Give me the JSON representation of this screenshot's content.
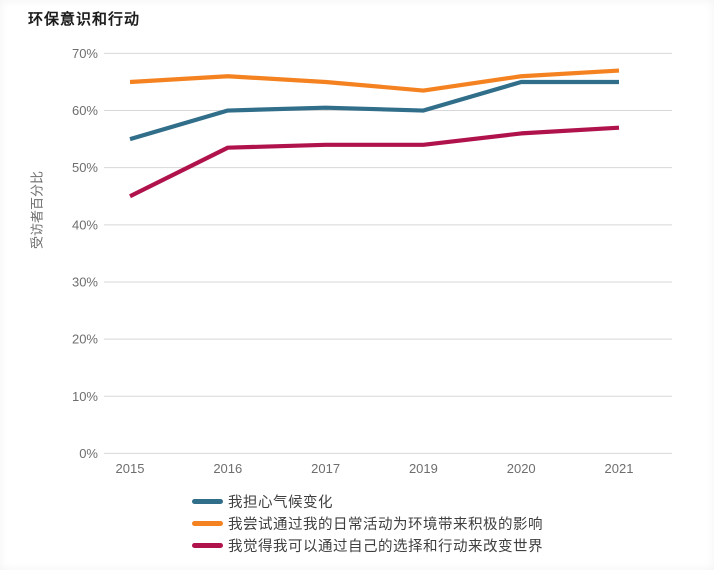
{
  "page": {
    "title": "环保意识和行动"
  },
  "chart_data": {
    "type": "line",
    "title": "环保意识和行动",
    "xlabel": "",
    "ylabel": "受访者百分比",
    "categories": [
      "2015",
      "2016",
      "2017",
      "2019",
      "2020",
      "2021"
    ],
    "series": [
      {
        "name": "我担心气候变化",
        "color": "#316e8a",
        "values": [
          55,
          60,
          60.5,
          60,
          65,
          65
        ]
      },
      {
        "name": "我尝试通过我的日常活动为环境带来积极的影响",
        "color": "#f58220",
        "values": [
          65,
          66,
          65,
          63.5,
          66,
          67
        ]
      },
      {
        "name": "我觉得我可以通过自己的选择和行动来改变世界",
        "color": "#b0134c",
        "values": [
          45,
          53.5,
          54,
          54,
          56,
          57
        ]
      }
    ],
    "ylim": [
      0,
      70
    ],
    "yticks": [
      0,
      10,
      20,
      30,
      40,
      50,
      60,
      70
    ],
    "ytick_suffix": "%",
    "grid": "horizontal",
    "gridline_color": "#d8d8d8",
    "legend_position": "bottom-left"
  }
}
